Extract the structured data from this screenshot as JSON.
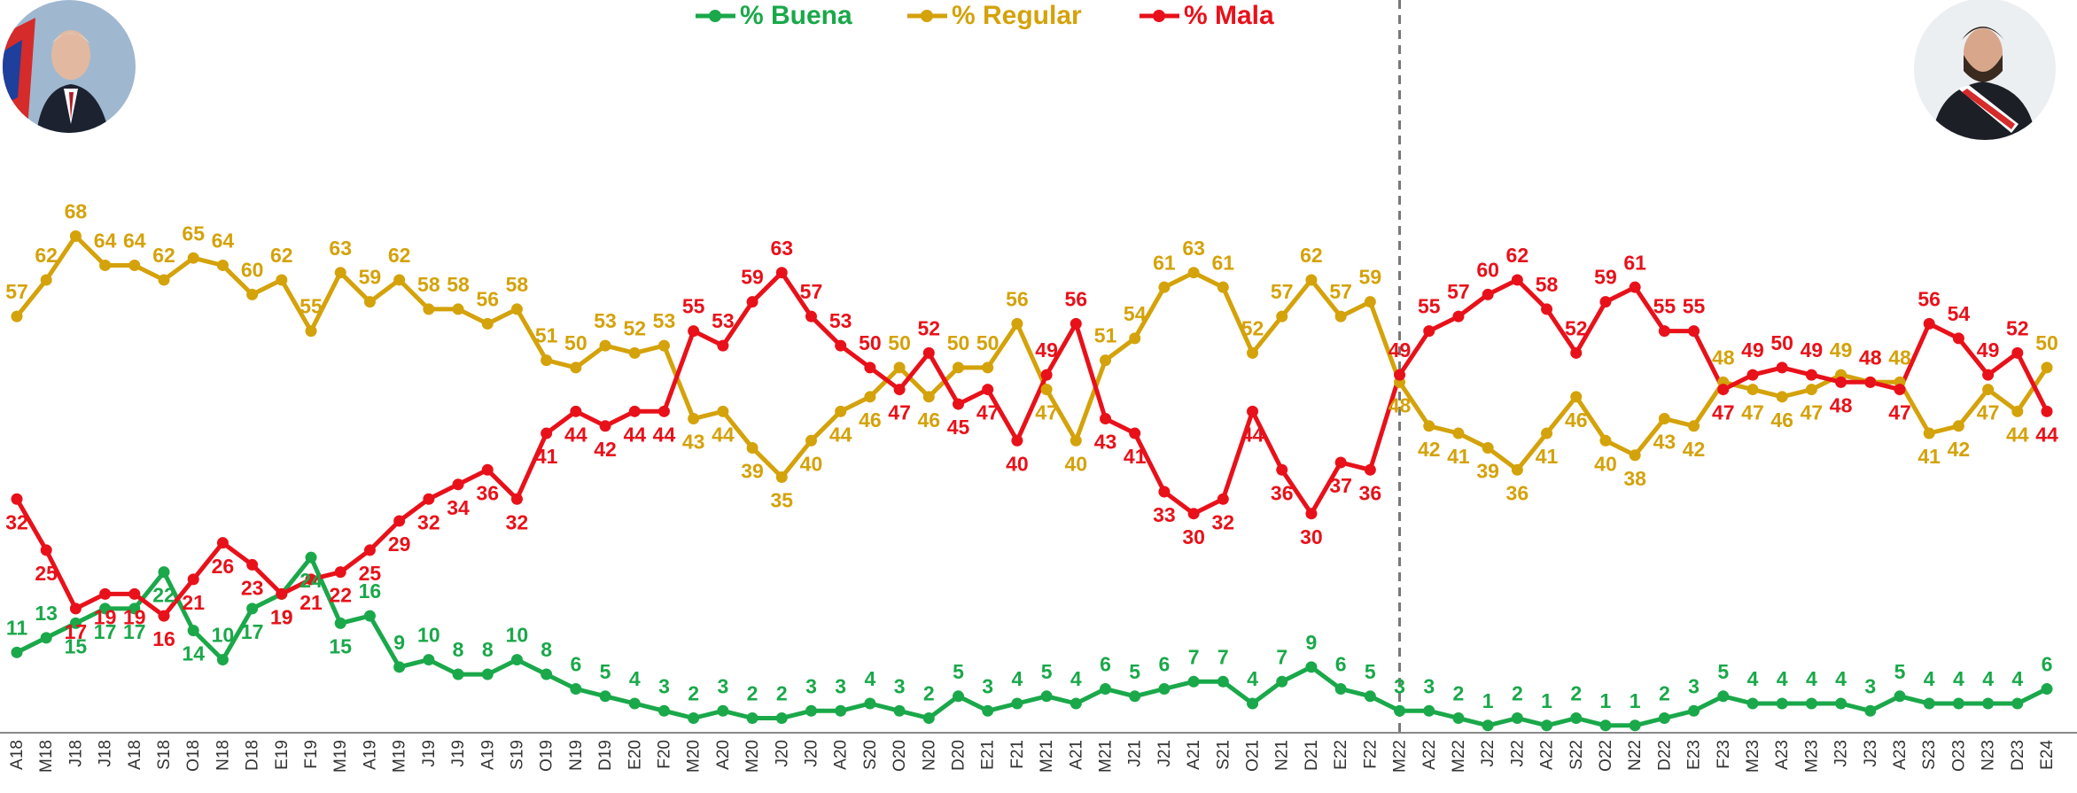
{
  "chart_data": {
    "type": "line",
    "categories": [
      "A18",
      "M18",
      "J18",
      "J18",
      "A18",
      "S18",
      "O18",
      "N18",
      "D18",
      "E19",
      "F19",
      "M19",
      "A19",
      "M19",
      "J19",
      "J19",
      "A19",
      "S19",
      "O19",
      "N19",
      "D19",
      "E20",
      "F20",
      "M20",
      "A20",
      "M20",
      "J20",
      "J20",
      "A20",
      "S20",
      "O20",
      "N20",
      "D20",
      "E21",
      "F21",
      "M21",
      "A21",
      "M21",
      "J21",
      "J21",
      "A21",
      "S21",
      "O21",
      "N21",
      "D21",
      "E22",
      "F22",
      "M22",
      "A22",
      "M22",
      "J22",
      "J22",
      "A22",
      "S22",
      "O22",
      "N22",
      "D22",
      "E23",
      "F23",
      "M23",
      "A23",
      "M23",
      "J23",
      "J23",
      "A23",
      "S23",
      "O23",
      "N23",
      "D23",
      "E24"
    ],
    "series": [
      {
        "name": "% Buena",
        "color": "#1aa84a",
        "values": [
          11,
          13,
          15,
          17,
          17,
          22,
          14,
          10,
          17,
          19,
          24,
          15,
          16,
          9,
          10,
          8,
          8,
          10,
          8,
          6,
          5,
          4,
          3,
          2,
          3,
          2,
          2,
          3,
          3,
          4,
          3,
          2,
          5,
          3,
          4,
          5,
          4,
          6,
          5,
          6,
          7,
          7,
          4,
          7,
          9,
          6,
          5,
          3,
          3,
          2,
          1,
          2,
          1,
          2,
          1,
          1,
          2,
          3,
          5,
          4,
          4,
          4,
          4,
          3,
          5,
          4,
          4,
          4,
          4,
          6
        ]
      },
      {
        "name": "% Regular",
        "color": "#d4a20a",
        "values": [
          57,
          62,
          68,
          64,
          64,
          62,
          65,
          64,
          60,
          62,
          55,
          63,
          59,
          62,
          58,
          58,
          56,
          58,
          51,
          50,
          53,
          52,
          53,
          43,
          44,
          39,
          35,
          40,
          44,
          46,
          50,
          46,
          50,
          50,
          56,
          47,
          40,
          51,
          54,
          61,
          63,
          61,
          52,
          57,
          62,
          57,
          59,
          48,
          42,
          41,
          39,
          36,
          41,
          46,
          40,
          38,
          43,
          42,
          48,
          47,
          46,
          47,
          49,
          48,
          48,
          41,
          42,
          47,
          44,
          50
        ]
      },
      {
        "name": "% Mala",
        "color": "#e8111a",
        "values": [
          32,
          25,
          17,
          19,
          19,
          16,
          21,
          26,
          23,
          19,
          21,
          22,
          25,
          29,
          32,
          34,
          36,
          32,
          41,
          44,
          42,
          44,
          44,
          55,
          53,
          59,
          63,
          57,
          53,
          50,
          47,
          52,
          45,
          47,
          40,
          49,
          56,
          43,
          41,
          33,
          30,
          32,
          44,
          36,
          30,
          37,
          36,
          49,
          55,
          57,
          60,
          62,
          58,
          52,
          59,
          61,
          55,
          55,
          47,
          49,
          50,
          49,
          48,
          48,
          47,
          56,
          54,
          49,
          52,
          44
        ]
      }
    ],
    "ylim": [
      0,
      70
    ],
    "grid": false,
    "legend": "top"
  }
}
